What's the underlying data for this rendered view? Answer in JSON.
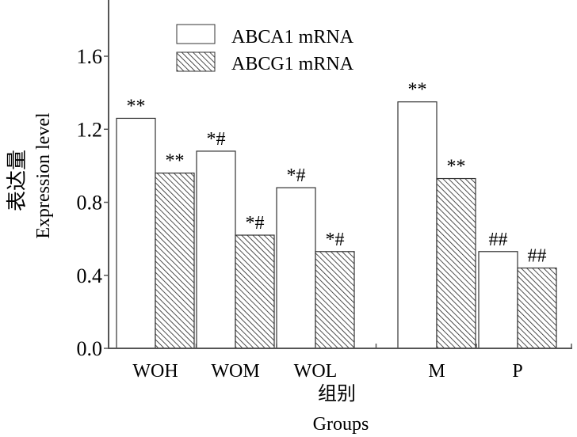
{
  "chart_data": {
    "type": "bar",
    "title": "",
    "categories": [
      "WOH",
      "WOM",
      "WOL",
      "M",
      "P"
    ],
    "series": [
      {
        "name": "ABCA1 mRNA",
        "pattern": "open",
        "values": [
          1.26,
          1.08,
          0.88,
          1.35,
          0.53
        ],
        "annotations": [
          "**",
          "*#",
          "*#",
          "**",
          "##"
        ]
      },
      {
        "name": "ABCG1 mRNA",
        "pattern": "hatched",
        "values": [
          0.96,
          0.62,
          0.53,
          0.93,
          0.44
        ],
        "annotations": [
          "**",
          "*#",
          "*#",
          "**",
          "##"
        ]
      }
    ],
    "xlabel": "组别",
    "xlabel_en": "Groups",
    "ylabel": "表达量",
    "ylabel_en": "Expression level",
    "ylim": [
      0,
      1.9
    ],
    "yticks": [
      "0.0",
      "0.4",
      "0.8",
      "1.2",
      "1.6"
    ],
    "ytick_values": [
      0,
      0.4,
      0.8,
      1.2,
      1.6
    ],
    "grid": false,
    "legend": "top-center",
    "colors": {
      "axis": "#555555",
      "bar_edge": "#333333",
      "fill": "#ffffff",
      "hatch": "#222222"
    }
  }
}
